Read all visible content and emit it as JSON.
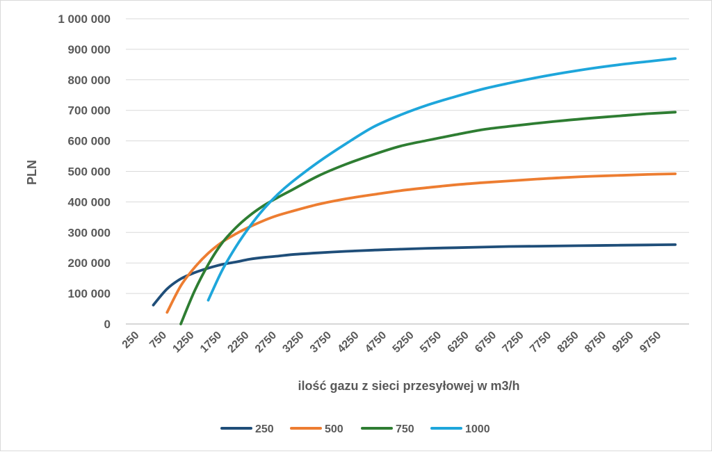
{
  "chart_data": {
    "type": "line",
    "title": "",
    "xlabel": "ilość gazu z sieci przesyłowej w m3/h",
    "ylabel": "PLN",
    "ylim": [
      0,
      1000000
    ],
    "y_ticks": [
      0,
      100000,
      200000,
      300000,
      400000,
      500000,
      600000,
      700000,
      800000,
      900000,
      1000000
    ],
    "y_tick_labels": [
      "0",
      "100 000",
      "200 000",
      "300 000",
      "400 000",
      "500 000",
      "600 000",
      "700 000",
      "800 000",
      "900 000",
      "1 000 000"
    ],
    "x_tick_labels": [
      "250",
      "750",
      "1250",
      "1750",
      "2250",
      "2750",
      "3250",
      "3750",
      "4250",
      "4750",
      "5250",
      "5750",
      "6250",
      "6750",
      "7250",
      "7750",
      "8250",
      "8750",
      "9250",
      "9750"
    ],
    "gridlines": true,
    "legend_position": "bottom",
    "series": [
      {
        "name": "250",
        "color": "#1f4e79",
        "x": [
          500,
          750,
          1000,
          1250,
          1500,
          1750,
          2000,
          2250,
          2500,
          2750,
          3000,
          3500,
          4000,
          4500,
          5000,
          5500,
          6000,
          6500,
          7000,
          7500,
          8000,
          8500,
          9000,
          9500,
          10000
        ],
        "y": [
          62000,
          115000,
          148000,
          168000,
          183000,
          195000,
          203000,
          212000,
          218000,
          222000,
          227000,
          233000,
          238000,
          242000,
          245000,
          248000,
          250000,
          252000,
          254000,
          255000,
          256000,
          257000,
          258000,
          259000,
          260000
        ]
      },
      {
        "name": "500",
        "color": "#ed7d31",
        "x": [
          750,
          1000,
          1250,
          1500,
          1750,
          2000,
          2250,
          2500,
          2750,
          3000,
          3500,
          4000,
          4500,
          5000,
          5500,
          6000,
          6500,
          7000,
          7500,
          8000,
          8500,
          9000,
          9500,
          10000
        ],
        "y": [
          38000,
          125000,
          185000,
          232000,
          268000,
          295000,
          318000,
          338000,
          355000,
          368000,
          392000,
          410000,
          424000,
          437000,
          447000,
          456000,
          463000,
          469000,
          475000,
          480000,
          484000,
          487000,
          490000,
          492000
        ]
      },
      {
        "name": "750",
        "color": "#2e7d32",
        "x": [
          1000,
          1250,
          1500,
          1750,
          2000,
          2250,
          2500,
          2750,
          3000,
          3500,
          4000,
          4500,
          5000,
          5500,
          6000,
          6500,
          7000,
          7500,
          8000,
          8500,
          9000,
          9500,
          10000
        ],
        "y": [
          0,
          108000,
          195000,
          265000,
          315000,
          355000,
          387000,
          413000,
          437000,
          485000,
          523000,
          555000,
          583000,
          602000,
          620000,
          637000,
          648000,
          658000,
          667000,
          675000,
          682000,
          689000,
          694000
        ]
      },
      {
        "name": "1000",
        "color": "#1ea6db",
        "x": [
          1500,
          1750,
          2000,
          2250,
          2500,
          2750,
          3000,
          3500,
          4000,
          4500,
          5000,
          5500,
          6000,
          6500,
          7000,
          7500,
          8000,
          8500,
          9000,
          9500,
          10000
        ],
        "y": [
          78000,
          175000,
          252000,
          318000,
          375000,
          422000,
          462000,
          530000,
          590000,
          645000,
          685000,
          718000,
          745000,
          770000,
          790000,
          808000,
          824000,
          838000,
          850000,
          860000,
          870000
        ]
      }
    ]
  }
}
